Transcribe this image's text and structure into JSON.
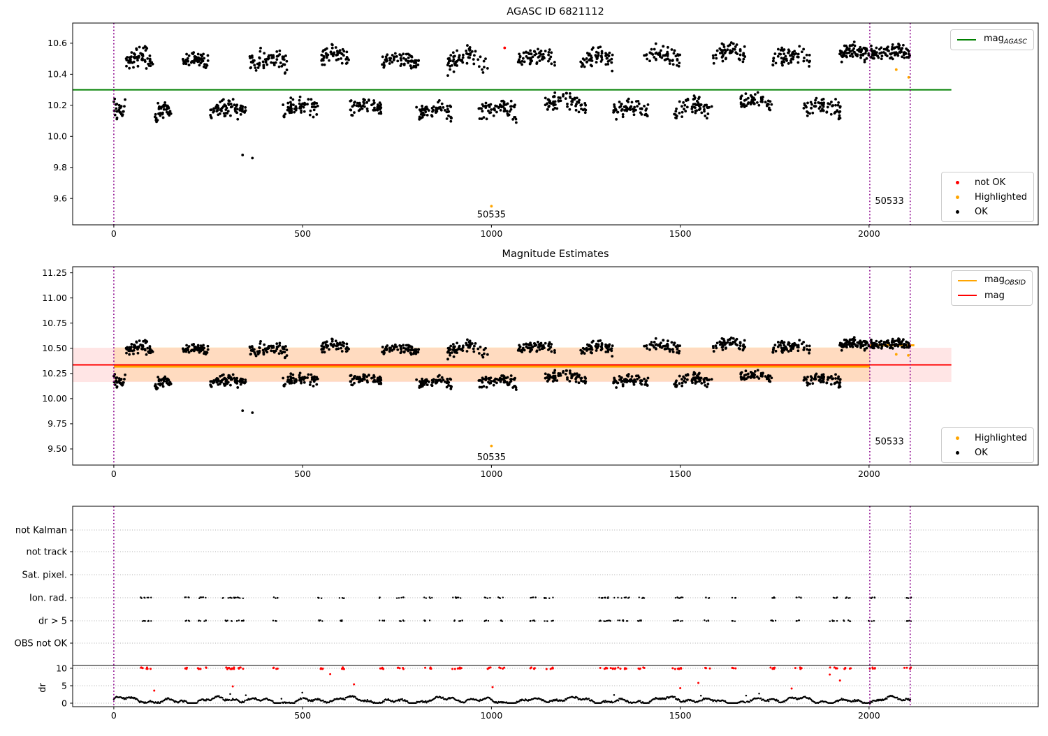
{
  "chart_data": {
    "x_axis": {
      "lim": [
        -109,
        2448
      ],
      "tick_values": [
        0,
        500,
        1000,
        1500,
        2000
      ],
      "tick_labels": [
        "0",
        "500",
        "1000",
        "1500",
        "2000"
      ]
    },
    "vlines": {
      "x": [
        0,
        2002,
        2109
      ],
      "color": "#8B008B",
      "style": "dotted"
    },
    "mag_clusters": [
      [
        0,
        30,
        10.2,
        26,
        0.1,
        -0.04
      ],
      [
        32,
        105,
        10.47,
        62,
        0.1,
        0.05
      ],
      [
        108,
        152,
        10.14,
        40,
        0.08,
        0.03
      ],
      [
        182,
        250,
        10.46,
        60,
        0.08,
        0.04
      ],
      [
        254,
        350,
        10.15,
        72,
        0.09,
        0.04
      ],
      [
        360,
        460,
        10.45,
        70,
        0.11,
        0.05
      ],
      [
        448,
        540,
        10.16,
        62,
        0.09,
        0.04
      ],
      [
        546,
        622,
        10.5,
        56,
        0.08,
        0.04
      ],
      [
        626,
        708,
        10.18,
        56,
        0.08,
        0.03
      ],
      [
        704,
        808,
        10.46,
        66,
        0.09,
        0.05
      ],
      [
        800,
        896,
        10.14,
        64,
        0.08,
        0.04
      ],
      [
        884,
        992,
        10.46,
        62,
        0.1,
        0.05
      ],
      [
        966,
        1066,
        10.15,
        66,
        0.09,
        0.04
      ],
      [
        1068,
        1168,
        10.48,
        62,
        0.09,
        0.04
      ],
      [
        1142,
        1250,
        10.2,
        70,
        0.08,
        0.03
      ],
      [
        1236,
        1326,
        10.47,
        58,
        0.1,
        0.04
      ],
      [
        1318,
        1418,
        10.15,
        62,
        0.09,
        0.04
      ],
      [
        1402,
        1500,
        10.49,
        58,
        0.09,
        0.05
      ],
      [
        1484,
        1584,
        10.16,
        62,
        0.09,
        0.04
      ],
      [
        1586,
        1676,
        10.51,
        56,
        0.09,
        0.04
      ],
      [
        1652,
        1742,
        10.2,
        56,
        0.08,
        0.03
      ],
      [
        1744,
        1844,
        10.49,
        62,
        0.09,
        0.04
      ],
      [
        1826,
        1926,
        10.16,
        64,
        0.09,
        0.04
      ],
      [
        1920,
        2000,
        10.52,
        72,
        0.08,
        0.03
      ],
      [
        2004,
        2108,
        10.53,
        85,
        0.07,
        0.02
      ]
    ],
    "mag_outliers_black": [
      [
        341,
        9.88
      ],
      [
        367,
        9.86
      ]
    ],
    "top": {
      "type": "scatter",
      "title": "AGASC ID 6821112",
      "ylim": [
        9.43,
        10.73
      ],
      "y_ticks": {
        "values": [
          10.6,
          10.4,
          10.2,
          10.0,
          9.8,
          9.6
        ],
        "labels": [
          "10.6",
          "10.4",
          "10.2",
          "10.0",
          "9.8",
          "9.6"
        ]
      },
      "agasc_line": {
        "y": 10.3,
        "x0": -109,
        "x1": 2218,
        "color": "#008000"
      },
      "points_not_ok": [
        [
          1035,
          10.57
        ]
      ],
      "points_highlighted": [
        [
          1000,
          9.55
        ],
        [
          2072,
          10.43
        ],
        [
          2105,
          10.38
        ]
      ],
      "legend_lines": [
        {
          "marker": "line",
          "color": "#008000",
          "label": "mag",
          "sub": "AGASC"
        }
      ],
      "legend_points": [
        {
          "marker": "dot",
          "color": "#ff0000",
          "label": "not OK"
        },
        {
          "marker": "dot",
          "color": "#ffa500",
          "label": "Highlighted"
        },
        {
          "marker": "dot",
          "color": "#000000",
          "label": "OK"
        }
      ],
      "annotations": [
        {
          "text": "50535",
          "x": 1000,
          "y": 9.497
        },
        {
          "text": "50533",
          "x": 2054,
          "y": 9.585
        }
      ]
    },
    "middle": {
      "type": "scatter",
      "title": "Magnitude Estimates",
      "ylim": [
        9.34,
        11.31
      ],
      "y_ticks": {
        "values": [
          11.25,
          11.0,
          10.75,
          10.5,
          10.25,
          10.0,
          9.75,
          9.5
        ],
        "labels": [
          "11.25",
          "11.00",
          "10.75",
          "10.50",
          "10.25",
          "10.00",
          "9.75",
          "9.50"
        ]
      },
      "band_red": {
        "y0": 10.165,
        "y1": 10.505,
        "x0": -109,
        "x1": 2218,
        "color": "rgba(255,0,0,0.10)"
      },
      "band_orange": {
        "y0": 10.17,
        "y1": 10.51,
        "x0": 0,
        "x1": 2002,
        "color": "rgba(255,165,0,0.16)"
      },
      "mag_line": {
        "y": 10.335,
        "x0": -109,
        "x1": 2218,
        "color": "#ff0000"
      },
      "obsid_line_segments": [
        {
          "x0": 0,
          "x1": 2002,
          "y": 10.318
        },
        {
          "x0": 2002,
          "x1": 2120,
          "y": 10.53
        }
      ],
      "obsid_color": "#ffa500",
      "points_highlighted": [
        [
          1000,
          9.53
        ],
        [
          2072,
          10.44
        ],
        [
          2104,
          10.43
        ]
      ],
      "legend_lines": [
        {
          "marker": "line",
          "color": "#ffa500",
          "label": "mag",
          "sub": "OBSID"
        },
        {
          "marker": "line",
          "color": "#ff0000",
          "label": "mag"
        }
      ],
      "legend_points": [
        {
          "marker": "dot",
          "color": "#ffa500",
          "label": "Highlighted"
        },
        {
          "marker": "dot",
          "color": "#000000",
          "label": "OK"
        }
      ],
      "annotations": [
        {
          "text": "50535",
          "x": 1000,
          "y": 9.42
        },
        {
          "text": "50533",
          "x": 2054,
          "y": 9.576
        }
      ]
    },
    "bottom": {
      "type": "flags",
      "rows": [
        "not Kalman",
        "not track",
        "Sat. pixel.",
        "Ion. rad.",
        "dr > 5",
        "OBS not OK"
      ],
      "flag_rows_with_points": [
        "Ion. rad.",
        "dr > 5"
      ],
      "flag_clusters": [
        [
          70,
          102
        ],
        [
          187,
          202
        ],
        [
          220,
          245
        ],
        [
          287,
          345
        ],
        [
          420,
          434
        ],
        [
          540,
          554
        ],
        [
          597,
          610
        ],
        [
          702,
          720
        ],
        [
          748,
          770
        ],
        [
          822,
          843
        ],
        [
          896,
          924
        ],
        [
          980,
          998
        ],
        [
          1018,
          1035
        ],
        [
          1100,
          1120
        ],
        [
          1140,
          1165
        ],
        [
          1285,
          1330
        ],
        [
          1335,
          1365
        ],
        [
          1386,
          1405
        ],
        [
          1480,
          1507
        ],
        [
          1562,
          1580
        ],
        [
          1637,
          1655
        ],
        [
          1738,
          1757
        ],
        [
          1803,
          1822
        ],
        [
          1895,
          1916
        ],
        [
          1932,
          1953
        ],
        [
          1997,
          2016
        ],
        [
          2093,
          2113
        ]
      ],
      "dr": {
        "label": "dr",
        "ticks": {
          "values": [
            10,
            5,
            0
          ],
          "labels": [
            "10",
            "5",
            "0"
          ]
        },
        "cap_line": 10.8,
        "red_cap_value": 10,
        "red_outliers": [
          [
            107,
            3.6
          ],
          [
            315,
            4.8
          ],
          [
            573,
            8.3
          ],
          [
            636,
            5.4
          ],
          [
            1003,
            4.6
          ],
          [
            1500,
            4.3
          ],
          [
            1548,
            5.8
          ],
          [
            1795,
            4.2
          ],
          [
            1896,
            8.2
          ],
          [
            1923,
            6.5
          ]
        ],
        "x_range": [
          0,
          2110
        ]
      },
      "grid_color": "#b0b0b0",
      "cap_line_color": "#000000",
      "flag_point_color": "#000000",
      "red_point_color": "#ff0000"
    }
  }
}
